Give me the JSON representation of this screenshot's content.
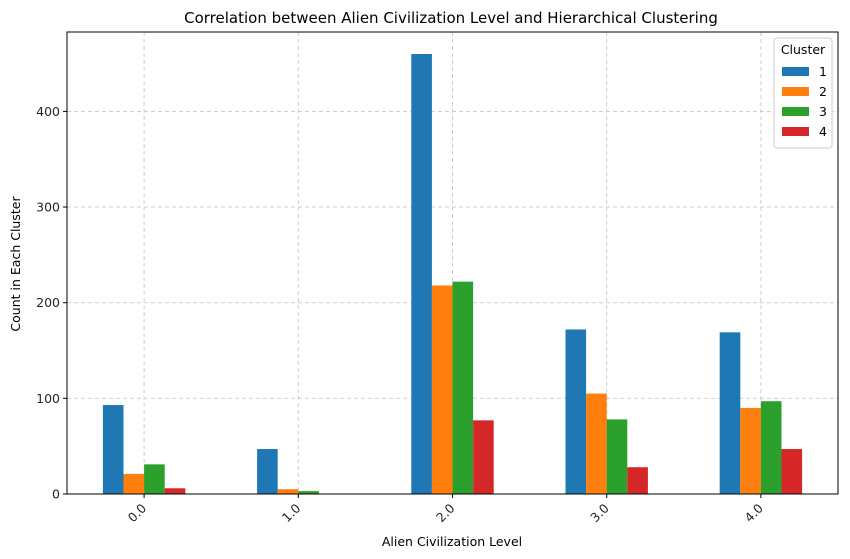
{
  "chart_data": {
    "type": "bar",
    "title": "Correlation between Alien Civilization Level and Hierarchical Clustering",
    "xlabel": "Alien Civilization Level",
    "ylabel": "Count in Each Cluster",
    "categories": [
      "0.0",
      "1.0",
      "2.0",
      "3.0",
      "4.0"
    ],
    "yticks": [
      0,
      100,
      200,
      300,
      400
    ],
    "ylim": [
      0,
      483
    ],
    "grid": true,
    "legend_title": "Cluster",
    "legend_position": "top-right",
    "series": [
      {
        "name": "1",
        "color": "#1f77b4",
        "values": [
          93,
          47,
          460,
          172,
          169
        ]
      },
      {
        "name": "2",
        "color": "#ff7f0e",
        "values": [
          21,
          5,
          218,
          105,
          90
        ]
      },
      {
        "name": "3",
        "color": "#2ca02c",
        "values": [
          31,
          3,
          222,
          78,
          97
        ]
      },
      {
        "name": "4",
        "color": "#d62728",
        "values": [
          6,
          0,
          77,
          28,
          47
        ]
      }
    ]
  }
}
